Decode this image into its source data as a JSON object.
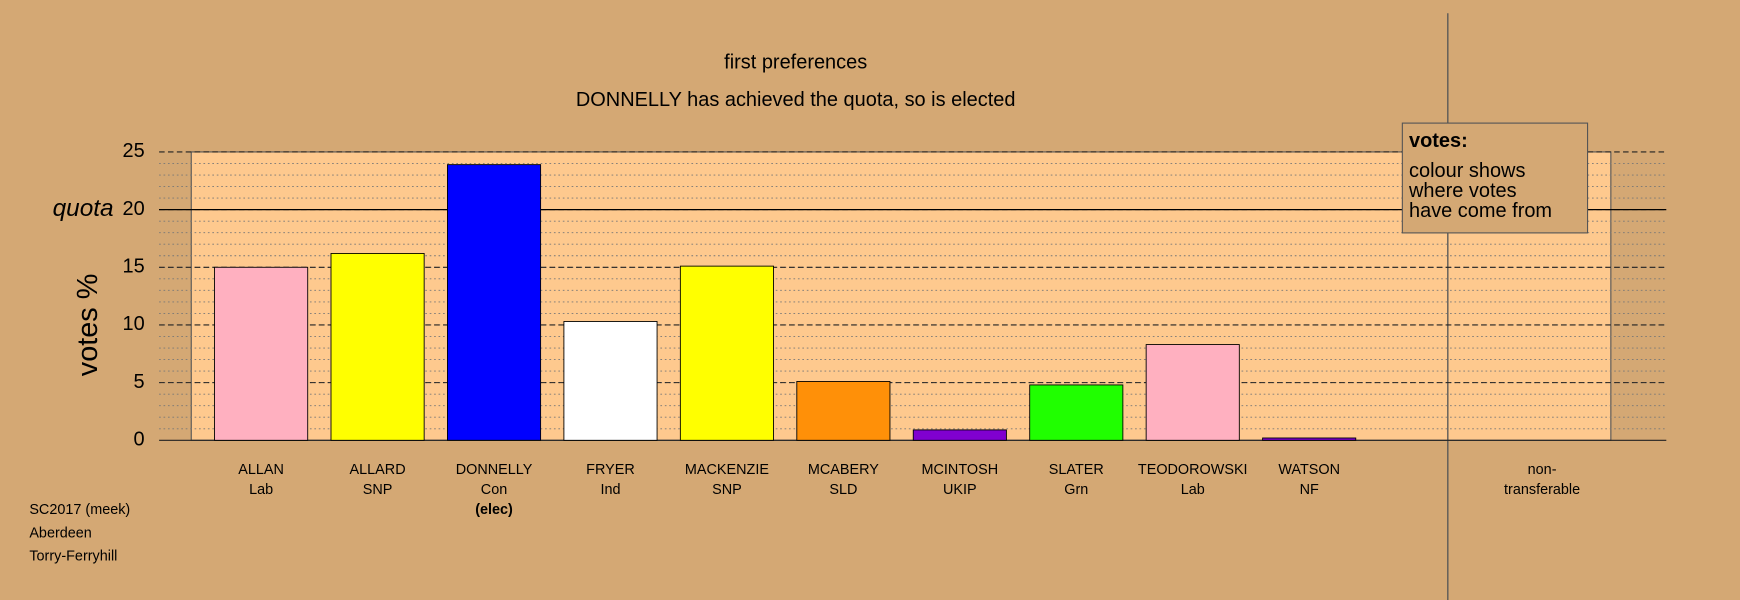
{
  "chart_data": {
    "type": "bar",
    "title": "first preferences",
    "subtitle": "DONNELLY has achieved the quota, so is elected",
    "y_label": "votes %",
    "categories": [
      "ALLAN",
      "ALLARD",
      "DONNELLY",
      "FRYER",
      "MACKENZIE",
      "MCABERY",
      "MCINTOSH",
      "SLATER",
      "TEODOROWSKI",
      "WATSON"
    ],
    "parties": [
      "Lab",
      "SNP",
      "Con",
      "Ind",
      "SNP",
      "SLD",
      "UKIP",
      "Grn",
      "Lab",
      "NF"
    ],
    "values": [
      15.0,
      16.2,
      23.9,
      10.3,
      15.1,
      5.1,
      0.9,
      4.8,
      8.3,
      0.2
    ],
    "colors": [
      "#ffb0c0",
      "#ffff00",
      "#0000ff",
      "#ffffff",
      "#ffff00",
      "#ff9008",
      "#8000d0",
      "#20ff00",
      "#ffb0c0",
      "#8000d0"
    ],
    "elected": "DONNELLY",
    "elected_label": "(elec)",
    "non_transferable_label": [
      "non-",
      "transferable"
    ],
    "ylim": [
      0,
      25
    ],
    "yticks": [
      0,
      5,
      10,
      15,
      20,
      25
    ],
    "minor_ytick_step": 1,
    "quota": {
      "value": 20,
      "label": "quota"
    },
    "legend": {
      "title": "votes:",
      "lines": [
        "colour shows",
        "where votes",
        "have come from"
      ]
    },
    "footer": [
      "SC2017 (meek)",
      "Aberdeen",
      "Torry-Ferryhill"
    ]
  }
}
